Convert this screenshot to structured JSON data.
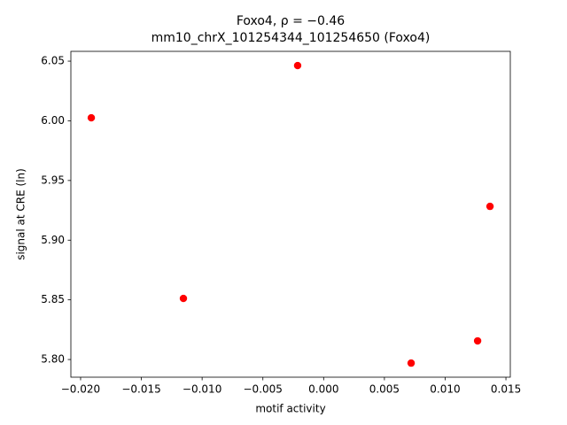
{
  "chart_data": {
    "type": "scatter",
    "title": "Foxo4, ρ = −0.46",
    "subtitle": "mm10_chrX_101254344_101254650 (Foxo4)",
    "x_label": "motif activity",
    "y_label": "signal at CRE (ln)",
    "color": "#ff0000",
    "x": [
      -0.01912,
      -0.00214,
      -0.01154,
      0.01369,
      0.01267,
      0.0072
    ],
    "values": [
      6.0025,
      6.0463,
      5.8512,
      5.9283,
      5.8156,
      5.797
    ],
    "xlim": [
      -0.0208,
      0.01536
    ],
    "ylim": [
      5.7852,
      6.0582
    ],
    "xticks": [
      {
        "value": -0.02,
        "label": "−0.020"
      },
      {
        "value": -0.015,
        "label": "−0.015"
      },
      {
        "value": -0.01,
        "label": "−0.010"
      },
      {
        "value": -0.005,
        "label": "−0.005"
      },
      {
        "value": 0,
        "label": "0.000"
      },
      0.005,
      {
        "value": 0.01,
        "label": "0.010"
      },
      0.015
    ],
    "yticks": [
      {
        "value": 5.8,
        "label": "5.80"
      },
      5.85,
      {
        "value": 5.9,
        "label": "5.90"
      },
      5.95,
      {
        "value": 6.0,
        "label": "6.00"
      },
      6.05
    ]
  }
}
